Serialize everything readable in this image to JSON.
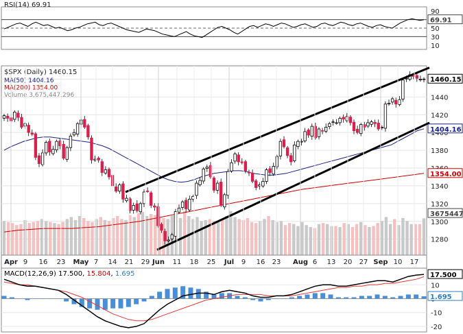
{
  "chart_data": [
    {
      "type": "line",
      "panel": "RSI",
      "label": "RSI(14) 69.91",
      "ylim": [
        0,
        100
      ],
      "yticks": [
        90,
        70,
        50,
        30,
        10
      ],
      "reference_lines": [
        70,
        50,
        30
      ],
      "last_value_label": "69.91",
      "series": [
        {
          "name": "RSI(14)",
          "color": "#000000",
          "values": [
            48,
            52,
            56,
            60,
            62,
            58,
            54,
            60,
            64,
            60,
            56,
            58,
            54,
            50,
            52,
            48,
            44,
            46,
            50,
            52,
            56,
            60,
            62,
            64,
            58,
            56,
            60,
            62,
            58,
            54,
            50,
            46,
            44,
            42,
            40,
            44,
            48,
            46,
            44,
            40,
            36,
            34,
            32,
            30,
            34,
            38,
            42,
            36,
            32,
            30,
            28,
            34,
            40,
            46,
            52,
            54,
            50,
            46,
            40,
            36,
            42,
            48,
            54,
            56,
            52,
            56,
            60,
            58,
            54,
            58,
            62,
            60,
            56,
            52,
            54,
            58,
            60,
            56,
            52,
            54,
            60,
            62,
            58,
            56,
            60,
            64,
            62,
            58,
            56,
            60,
            62,
            58,
            54,
            52,
            56,
            58,
            54,
            52,
            50,
            56,
            62,
            66,
            70,
            72,
            70,
            68,
            69.91
          ]
        }
      ]
    },
    {
      "type": "candlestick",
      "panel": "price",
      "title": "$SPX (Daily) 1460.15",
      "ylim": [
        1262,
        1475
      ],
      "yticks": [
        1460,
        1440,
        1420,
        1400,
        1380,
        1360,
        1340,
        1320,
        1300,
        1280
      ],
      "last_value_label": "1460.15",
      "legend": [
        {
          "name": "MA(50) 1404.16",
          "color": "#1a237e"
        },
        {
          "name": "MA(200) 1354.00",
          "color": "#cc0000"
        },
        {
          "name": "Volume 3,675,447,296",
          "color": "#888888"
        }
      ],
      "value_labels": [
        {
          "text": "1404.16",
          "color": "#1a237e",
          "y": 1404.16
        },
        {
          "text": "1354.00",
          "color": "#cc0000",
          "y": 1354.0
        },
        {
          "text": "3675447",
          "color": "#444444",
          "y": 1309
        }
      ],
      "x_labels": [
        "Apr",
        "9",
        "16",
        "23",
        "May",
        "7",
        "14",
        "21",
        "29",
        "Jun",
        "11",
        "18",
        "25",
        "Jul",
        "9",
        "16",
        "23",
        "Aug",
        "6",
        "13",
        "20",
        "27",
        "Sep",
        "10",
        "17"
      ],
      "closes": [
        1419,
        1416,
        1413,
        1423,
        1417,
        1406,
        1410,
        1400,
        1398,
        1372,
        1365,
        1377,
        1389,
        1378,
        1381,
        1390,
        1385,
        1371,
        1383,
        1396,
        1400,
        1410,
        1414,
        1406,
        1395,
        1369,
        1370,
        1369,
        1355,
        1358,
        1350,
        1340,
        1334,
        1341,
        1325,
        1326,
        1312,
        1318,
        1312,
        1320,
        1333,
        1334,
        1318,
        1316,
        1295,
        1290,
        1278,
        1279,
        1285,
        1311,
        1315,
        1322,
        1314,
        1325,
        1328,
        1343,
        1346,
        1359,
        1361,
        1350,
        1335,
        1343,
        1318,
        1330,
        1356,
        1366,
        1376,
        1367,
        1366,
        1357,
        1355,
        1345,
        1338,
        1341,
        1345,
        1358,
        1355,
        1362,
        1373,
        1390,
        1384,
        1374,
        1367,
        1386,
        1390,
        1390,
        1401,
        1397,
        1407,
        1394,
        1404,
        1402,
        1406,
        1410,
        1412,
        1411,
        1416,
        1415,
        1418,
        1411,
        1402,
        1400,
        1409,
        1406,
        1411,
        1412,
        1410,
        1404,
        1406,
        1432,
        1433,
        1438,
        1432,
        1437,
        1459,
        1461,
        1465,
        1463,
        1461,
        1460,
        1460.15
      ],
      "ma50": [
        1380,
        1384,
        1387,
        1390,
        1392,
        1394,
        1395,
        1395,
        1394,
        1393,
        1392,
        1391,
        1390,
        1389,
        1387,
        1385,
        1382,
        1378,
        1374,
        1370,
        1366,
        1362,
        1358,
        1354,
        1350,
        1347,
        1345,
        1344,
        1345,
        1347,
        1350,
        1352,
        1354,
        1355,
        1356,
        1357,
        1357,
        1356,
        1354,
        1353,
        1352,
        1352,
        1353,
        1354,
        1356,
        1358,
        1360,
        1362,
        1364,
        1366,
        1368,
        1370,
        1372,
        1374,
        1376,
        1378,
        1380,
        1382,
        1384,
        1386,
        1390,
        1394,
        1398,
        1402,
        1404.16
      ],
      "ma200": [
        1288,
        1290,
        1291,
        1292,
        1292,
        1292,
        1293,
        1294,
        1296,
        1298,
        1300,
        1303,
        1306,
        1309,
        1312,
        1315,
        1318,
        1321,
        1324,
        1327,
        1330,
        1333,
        1336,
        1338,
        1340,
        1342,
        1344,
        1346,
        1348,
        1350,
        1352,
        1354.0
      ],
      "trend_lines": [
        {
          "from": [
            "May 21",
            1333
          ],
          "to": [
            "Sep 21",
            1473
          ]
        },
        {
          "from": [
            "May 30",
            1268
          ],
          "to": [
            "Sep 21",
            1411
          ]
        }
      ]
    },
    {
      "type": "bar",
      "panel": "volume",
      "label": "Volume 3,675,447,296",
      "values": [
        3.4,
        3.3,
        3.2,
        3.0,
        3.1,
        3.5,
        3.2,
        3.3,
        3.4,
        3.6,
        3.4,
        3.3,
        3.2,
        3.1,
        3.3,
        3.6,
        3.8,
        3.5,
        3.9,
        3.7,
        3.4,
        3.3,
        3.6,
        3.8,
        3.5,
        3.4,
        3.7,
        3.9,
        3.6,
        3.5,
        4.0,
        3.8,
        4.2,
        4.3,
        3.9,
        4.1,
        4.0,
        3.8,
        3.7,
        3.6,
        3.9,
        4.1,
        3.7,
        4.4,
        3.9,
        3.6,
        3.8,
        3.4,
        3.5,
        3.6,
        3.4,
        3.3,
        3.5,
        3.9,
        4.4,
        3.8,
        3.6,
        3.5,
        3.7,
        3.3,
        3.2,
        3.4,
        3.6,
        3.9,
        3.5,
        3.3,
        3.4,
        3.0,
        3.2,
        3.1,
        2.9,
        3.3,
        3.0,
        2.8,
        2.7,
        3.1,
        3.2,
        3.1,
        2.9,
        2.9,
        2.8,
        3.2,
        3.1,
        2.8,
        3.1,
        3.3,
        3.0,
        2.8,
        2.9,
        3.2,
        3.4,
        3.8,
        3.1,
        3.6,
        3.0,
        3.7,
        3.4,
        3.1,
        3.1,
        3.1,
        3.67
      ]
    },
    {
      "type": "line",
      "panel": "MACD",
      "label_parts": [
        {
          "text": "MACD(12,26,9) ",
          "color": "#000000"
        },
        {
          "text": "17.500",
          "color": "#000000"
        },
        {
          "text": ", ",
          "color": "#000000"
        },
        {
          "text": "15.804",
          "color": "#cc0000"
        },
        {
          "text": ", ",
          "color": "#000000"
        },
        {
          "text": "1.695",
          "color": "#2e7dbf"
        }
      ],
      "ylim": [
        -24,
        22
      ],
      "yticks": [
        10,
        0,
        -10,
        -20
      ],
      "value_labels": [
        {
          "text": "17.500",
          "color": "#000000",
          "y": 17.5
        },
        {
          "text": "1.695",
          "color": "#2e7dbf",
          "y": 1.695
        }
      ],
      "series": [
        {
          "name": "MACD",
          "color": "#000000",
          "values": [
            14,
            12,
            10,
            9,
            9,
            8,
            7,
            6,
            3,
            -1,
            -5,
            -9,
            -13,
            -16,
            -18,
            -20,
            -21,
            -20,
            -18,
            -13,
            -8,
            -4,
            -1,
            2,
            3,
            4,
            4,
            3,
            5,
            6,
            5,
            4,
            2,
            1,
            1,
            2,
            2,
            3,
            5,
            7,
            9,
            10,
            10,
            9,
            9,
            10,
            11,
            12,
            13,
            13,
            12,
            14,
            16,
            17,
            17.5
          ]
        },
        {
          "name": "Signal",
          "color": "#e53935",
          "values": [
            12,
            11,
            10,
            10,
            9,
            8,
            7,
            6,
            5,
            3,
            1,
            -2,
            -5,
            -8,
            -11,
            -13,
            -15,
            -16,
            -16,
            -15,
            -13,
            -11,
            -9,
            -7,
            -5,
            -3,
            -1,
            0,
            1,
            2,
            3,
            3,
            3,
            3,
            2,
            2,
            2,
            2,
            3,
            4,
            5,
            6,
            7,
            8,
            8,
            9,
            9,
            10,
            10,
            11,
            11,
            12,
            13,
            14,
            15.804
          ]
        },
        {
          "name": "Histogram",
          "color": "#4a8fd6",
          "values": [
            2,
            1,
            0,
            -1,
            0,
            0,
            0,
            0,
            -2,
            -4,
            -6,
            -7,
            -8,
            -8,
            -7,
            -7,
            -6,
            -4,
            -2,
            2,
            5,
            7,
            8,
            9,
            8,
            7,
            5,
            3,
            4,
            4,
            2,
            1,
            -1,
            -2,
            -1,
            0,
            0,
            1,
            2,
            3,
            4,
            4,
            3,
            1,
            1,
            1,
            2,
            2,
            3,
            2,
            1,
            2,
            3,
            3,
            1.695
          ]
        }
      ]
    }
  ]
}
